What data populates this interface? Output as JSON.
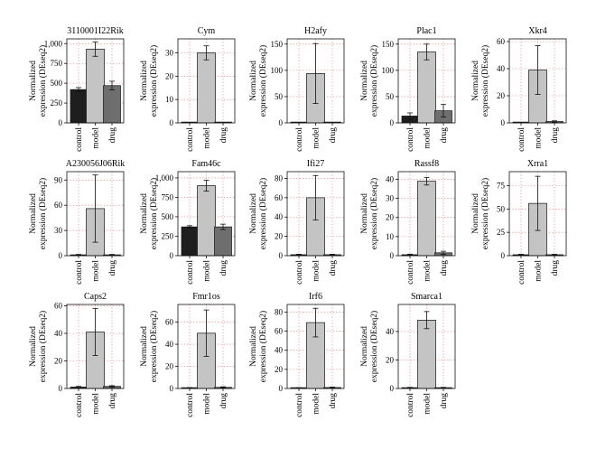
{
  "y_axis_label": [
    "Normalized",
    "expression (DEseq2)"
  ],
  "groups": [
    "control",
    "model",
    "drug"
  ],
  "bar_colors": {
    "control": "#1e1e1e",
    "model": "#c4c4c4",
    "drug": "#6e6e6e"
  },
  "chart_data": [
    {
      "type": "bar",
      "title": "3110001I22Rik",
      "categories": [
        "control",
        "model",
        "drug"
      ],
      "values": [
        420,
        930,
        470
      ],
      "errors": [
        25,
        90,
        55
      ],
      "ylim": [
        0,
        1060
      ],
      "yticks": [
        0,
        250,
        500,
        750,
        1000
      ],
      "ytick_labels": [
        "0",
        "250",
        "500",
        "750",
        "1,000"
      ]
    },
    {
      "type": "bar",
      "title": "Cym",
      "categories": [
        "control",
        "model",
        "drug"
      ],
      "values": [
        0,
        30,
        0
      ],
      "errors": [
        0,
        3,
        0
      ],
      "ylim": [
        0,
        36
      ],
      "yticks": [
        0,
        10,
        20,
        30
      ],
      "ytick_labels": [
        "0",
        "10",
        "20",
        "30"
      ]
    },
    {
      "type": "bar",
      "title": "H2afy",
      "categories": [
        "control",
        "model",
        "drug"
      ],
      "values": [
        0,
        94,
        0
      ],
      "errors": [
        0,
        57,
        0
      ],
      "ylim": [
        0,
        160
      ],
      "yticks": [
        0,
        50,
        100,
        150
      ],
      "ytick_labels": [
        "0",
        "50",
        "100",
        "150"
      ]
    },
    {
      "type": "bar",
      "title": "Plac1",
      "categories": [
        "control",
        "model",
        "drug"
      ],
      "values": [
        13,
        135,
        23
      ],
      "errors": [
        6,
        15,
        12
      ],
      "ylim": [
        0,
        160
      ],
      "yticks": [
        0,
        50,
        100,
        150
      ],
      "ytick_labels": [
        "0",
        "50",
        "100",
        "150"
      ]
    },
    {
      "type": "bar",
      "title": "Xkr4",
      "categories": [
        "control",
        "model",
        "drug"
      ],
      "values": [
        0,
        39,
        1
      ],
      "errors": [
        0,
        18,
        0.5
      ],
      "ylim": [
        0,
        62
      ],
      "yticks": [
        0,
        20,
        40,
        60
      ],
      "ytick_labels": [
        "0",
        "20",
        "40",
        "60"
      ]
    },
    {
      "type": "bar",
      "title": "A230056J06Rik",
      "categories": [
        "control",
        "model",
        "drug"
      ],
      "values": [
        1,
        56,
        1
      ],
      "errors": [
        0.5,
        40,
        0.5
      ],
      "ylim": [
        0,
        100
      ],
      "yticks": [
        0,
        30,
        60,
        90
      ],
      "ytick_labels": [
        "0",
        "30",
        "60",
        "90"
      ]
    },
    {
      "type": "bar",
      "title": "Fam46c",
      "categories": [
        "control",
        "model",
        "drug"
      ],
      "values": [
        370,
        900,
        370
      ],
      "errors": [
        15,
        70,
        35
      ],
      "ylim": [
        0,
        1080
      ],
      "yticks": [
        0,
        250,
        500,
        750,
        1000
      ],
      "ytick_labels": [
        "0",
        "250",
        "500",
        "750",
        "1,000"
      ]
    },
    {
      "type": "bar",
      "title": "Ifi27",
      "categories": [
        "control",
        "model",
        "drug"
      ],
      "values": [
        1,
        60,
        1
      ],
      "errors": [
        0.5,
        23,
        0.5
      ],
      "ylim": [
        0,
        87
      ],
      "yticks": [
        0,
        20,
        40,
        60,
        80
      ],
      "ytick_labels": [
        "0",
        "20",
        "40",
        "60",
        "80"
      ]
    },
    {
      "type": "bar",
      "title": "Rassf8",
      "categories": [
        "control",
        "model",
        "drug"
      ],
      "values": [
        0.5,
        39,
        1.5
      ],
      "errors": [
        0.3,
        2,
        0.8
      ],
      "ylim": [
        0,
        44
      ],
      "yticks": [
        0,
        10,
        20,
        30,
        40
      ],
      "ytick_labels": [
        "0",
        "10",
        "20",
        "30",
        "40"
      ]
    },
    {
      "type": "bar",
      "title": "Xrra1",
      "categories": [
        "control",
        "model",
        "drug"
      ],
      "values": [
        1,
        56,
        1
      ],
      "errors": [
        0.5,
        29,
        0.5
      ],
      "ylim": [
        0,
        90
      ],
      "yticks": [
        0,
        25,
        50,
        75
      ],
      "ytick_labels": [
        "0",
        "25",
        "50",
        "75"
      ]
    },
    {
      "type": "bar",
      "title": "Caps2",
      "categories": [
        "control",
        "model",
        "drug"
      ],
      "values": [
        1,
        41,
        1.5
      ],
      "errors": [
        0.5,
        17,
        0.5
      ],
      "ylim": [
        0,
        61
      ],
      "yticks": [
        0,
        20,
        40,
        60
      ],
      "ytick_labels": [
        "0",
        "20",
        "40",
        "60"
      ]
    },
    {
      "type": "bar",
      "title": "Fmr1os",
      "categories": [
        "control",
        "model",
        "drug"
      ],
      "values": [
        0.5,
        50,
        1
      ],
      "errors": [
        0.3,
        21,
        0.5
      ],
      "ylim": [
        0,
        76
      ],
      "yticks": [
        0,
        20,
        40,
        60
      ],
      "ytick_labels": [
        "0",
        "20",
        "40",
        "60"
      ]
    },
    {
      "type": "bar",
      "title": "Irf6",
      "categories": [
        "control",
        "model",
        "drug"
      ],
      "values": [
        0.5,
        69,
        1
      ],
      "errors": [
        0.3,
        15,
        0.5
      ],
      "ylim": [
        0,
        88
      ],
      "yticks": [
        0,
        20,
        40,
        60,
        80
      ],
      "ytick_labels": [
        "0",
        "20",
        "40",
        "60",
        "80"
      ]
    },
    {
      "type": "bar",
      "title": "Smarca1",
      "categories": [
        "control",
        "model",
        "drug"
      ],
      "values": [
        0.5,
        48,
        0.5
      ],
      "errors": [
        0.3,
        6,
        0.3
      ],
      "ylim": [
        0,
        59
      ],
      "yticks": [
        0,
        20,
        40
      ],
      "ytick_labels": [
        "0",
        "20",
        "40"
      ]
    }
  ]
}
